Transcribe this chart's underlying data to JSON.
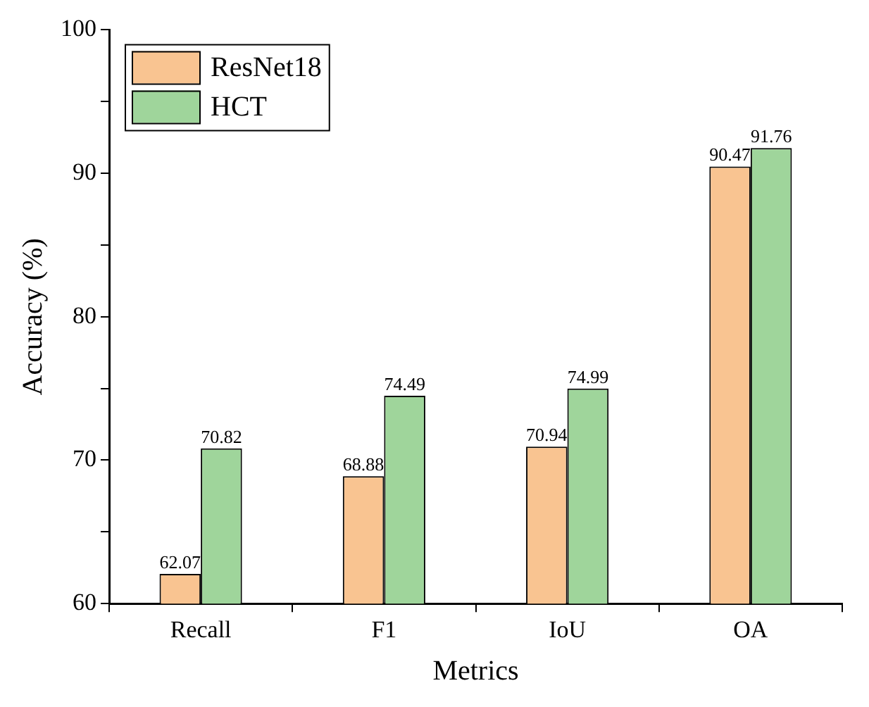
{
  "chart_data": {
    "type": "bar",
    "xlabel": "Metrics",
    "ylabel": "Accuracy (%)",
    "categories": [
      "Recall",
      "F1",
      "IoU",
      "OA"
    ],
    "series": [
      {
        "name": "ResNet18",
        "color": "#f9c491",
        "values": [
          62.07,
          68.88,
          70.94,
          90.47
        ]
      },
      {
        "name": "HCT",
        "color": "#9fd59b",
        "values": [
          70.82,
          74.49,
          74.99,
          91.76
        ]
      }
    ],
    "ylim": [
      60,
      100
    ],
    "yticks": [
      60,
      {
        "value": 65,
        "label": null
      },
      70,
      {
        "value": 75,
        "label": null
      },
      80,
      {
        "value": 85,
        "label": null
      },
      90,
      {
        "value": 95,
        "label": null
      },
      100
    ],
    "grid": false,
    "legend": "top left",
    "data_labels": true
  }
}
